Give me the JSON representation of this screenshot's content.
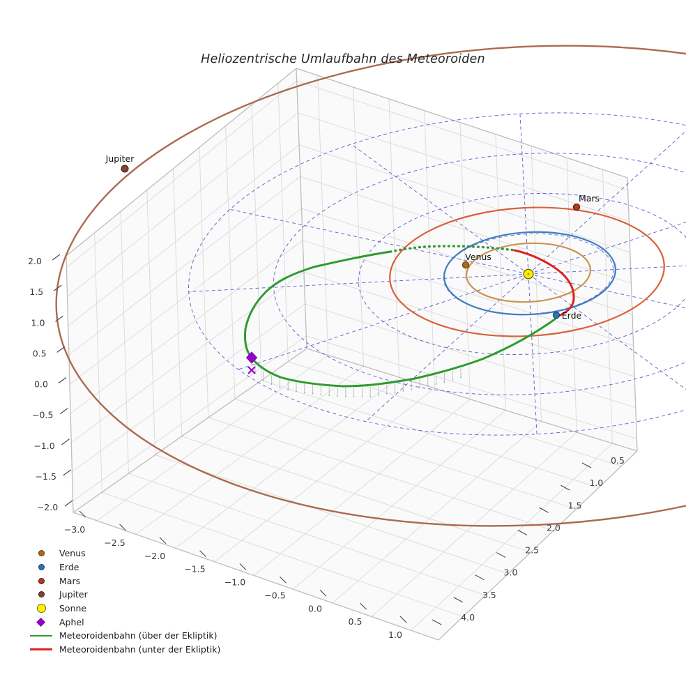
{
  "title": "Heliozentrische Umlaufbahn des Meteoroiden",
  "legend": {
    "items": [
      {
        "label": "Venus",
        "marker": "circle",
        "fill": "#b06a10",
        "edge": "#5a3808",
        "size": 9
      },
      {
        "label": "Erde",
        "marker": "circle",
        "fill": "#2f74b5",
        "edge": "#163a5c",
        "size": 9
      },
      {
        "label": "Mars",
        "marker": "circle",
        "fill": "#b63722",
        "edge": "#4d1708",
        "size": 9
      },
      {
        "label": "Jupiter",
        "marker": "circle",
        "fill": "#7d4636",
        "edge": "#3e2219",
        "size": 9
      },
      {
        "label": "Sonne",
        "marker": "circle",
        "fill": "#ffef00",
        "edge": "#7a7000",
        "size": 13
      },
      {
        "label": "Aphel",
        "marker": "diamond",
        "fill": "#9900cc",
        "edge": "#7700aa",
        "size": 10
      },
      {
        "label": "Meteoroidenbahn (über der Ekliptik)",
        "marker": "line",
        "fill": "#2e9b2e",
        "size": 3
      },
      {
        "label": "Meteoroidenbahn (unter der Ekliptik)",
        "marker": "line",
        "fill": "#dd2222",
        "size": 3
      }
    ]
  },
  "chart_data": {
    "type": "line",
    "projection": "3d",
    "title": "Heliozentrische Umlaufbahn des Meteoroiden",
    "axis_units": "AU",
    "x_ticks": [
      "−3.0",
      "−2.5",
      "−2.0",
      "−1.5",
      "−1.0",
      "−0.5",
      "0.0",
      "0.5",
      "1.0"
    ],
    "y_ticks": [
      "0.5",
      "1.0",
      "1.5",
      "2.0",
      "2.5",
      "3.0",
      "3.5",
      "4.0"
    ],
    "z_ticks": [
      "2.0",
      "1.5",
      "1.0",
      "0.5",
      "0.0",
      "−0.5",
      "−1.0",
      "−1.5",
      "−2.0"
    ],
    "grid": true,
    "legend_position": "lower-left",
    "orbits": [
      {
        "name": "Venus",
        "color": "#c9954e",
        "radius_au": 0.72
      },
      {
        "name": "Erde",
        "color": "#3d7fc1",
        "radius_au": 1.0
      },
      {
        "name": "Mars",
        "color": "#d9603a",
        "radius_au": 1.55
      },
      {
        "name": "Jupiter",
        "color": "#ab6a50",
        "radius_au": 5.3
      }
    ],
    "markers": [
      {
        "label": "Venus"
      },
      {
        "label": "Erde"
      },
      {
        "label": "Mars"
      },
      {
        "label": "Jupiter"
      }
    ],
    "sun": {
      "label": "Sonne",
      "fill": "#ffef00",
      "edge": "#7a7000"
    },
    "meteoroid": {
      "above": {
        "label": "Meteoroidenbahn (über der Ekliptik)",
        "color": "#2e9b2e"
      },
      "below": {
        "label": "Meteoroidenbahn (unter der Ekliptik)",
        "color": "#dd2222"
      },
      "aphel": {
        "label": "Aphel",
        "color": "#9900cc"
      }
    },
    "polar_grid": {
      "color": "#5050c8",
      "rings": [
        1,
        2,
        3,
        4
      ],
      "spoke_step_deg": 30
    }
  }
}
